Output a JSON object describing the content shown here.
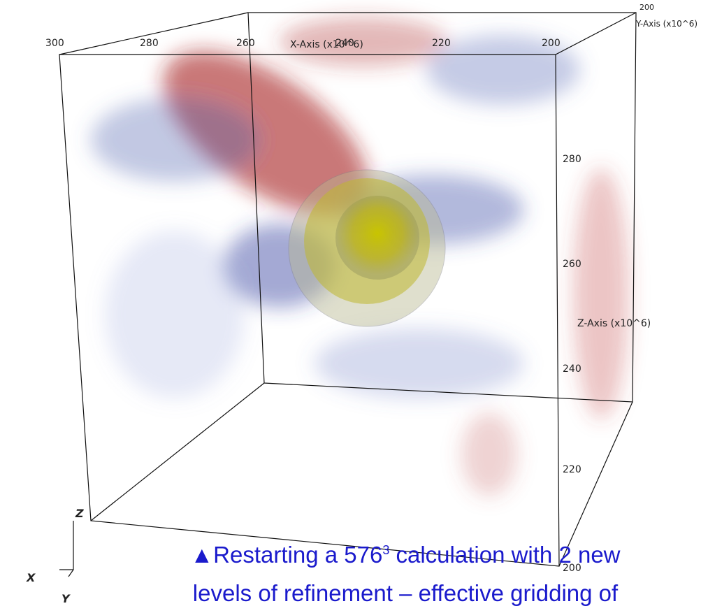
{
  "x_axis": {
    "label": "X-Axis (x10^6)",
    "ticks": [
      300,
      280,
      260,
      240,
      220,
      200
    ]
  },
  "y_axis": {
    "label": "Y-Axis (x10^6)",
    "ticks": [
      200
    ]
  },
  "z_axis": {
    "label": "Z-Axis (x10^6)",
    "ticks": [
      280,
      260,
      240,
      220,
      200
    ]
  },
  "triad": {
    "z": "Z",
    "x": "X",
    "y": "Y"
  },
  "caption": {
    "marker": "▲",
    "line1_pre": "Restarting a 576",
    "sup": "3",
    "line1_post": " calculation with 2 new",
    "line2": "levels of refinement – effective gridding of"
  }
}
